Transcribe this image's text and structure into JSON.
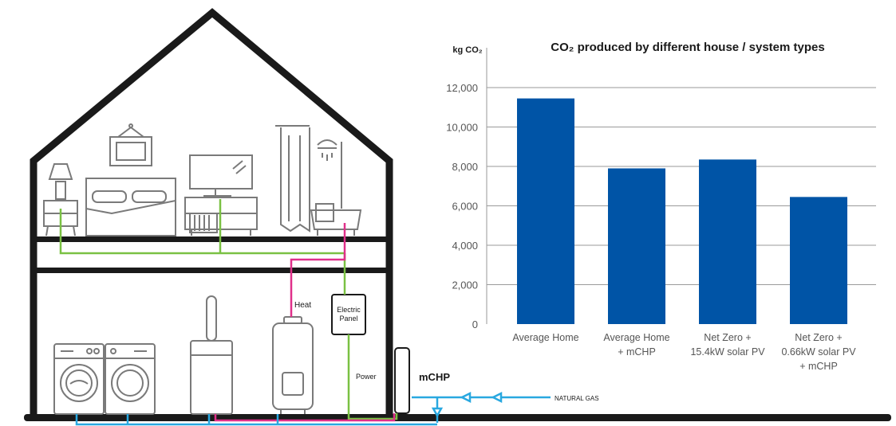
{
  "colors": {
    "outline": "#1a1a1a",
    "furniture": "#7a7a7a",
    "electric": "#7ac143",
    "heat": "#e0308a",
    "gas": "#29a8e0",
    "bar": "#0054a6",
    "grid": "#9a9a9a",
    "tick_text": "#555555",
    "title_text": "#1a1a1a"
  },
  "diagram": {
    "heat_label": "Heat",
    "panel_label_1": "Electric",
    "panel_label_2": "Panel",
    "power_label": "Power",
    "mchp_label": "mCHP",
    "gas_label": "NATURAL GAS"
  },
  "chart_data": {
    "type": "bar",
    "title": "CO₂ produced by different house / system types",
    "ylabel": "kg CO₂",
    "xlabel": "",
    "ylim": [
      0,
      12000
    ],
    "yticks": [
      0,
      2000,
      4000,
      6000,
      8000,
      10000,
      12000
    ],
    "ytick_labels": [
      "0",
      "2,000",
      "4,000",
      "6,000",
      "8,000",
      "10,000",
      "12,000"
    ],
    "grid": true,
    "categories": [
      [
        "Average Home"
      ],
      [
        "Average Home",
        "+ mCHP"
      ],
      [
        "Net Zero +",
        "15.4kW solar PV"
      ],
      [
        "Net Zero +",
        "0.66kW solar PV",
        "+ mCHP"
      ]
    ],
    "values": [
      11450,
      7900,
      8350,
      6450
    ]
  }
}
